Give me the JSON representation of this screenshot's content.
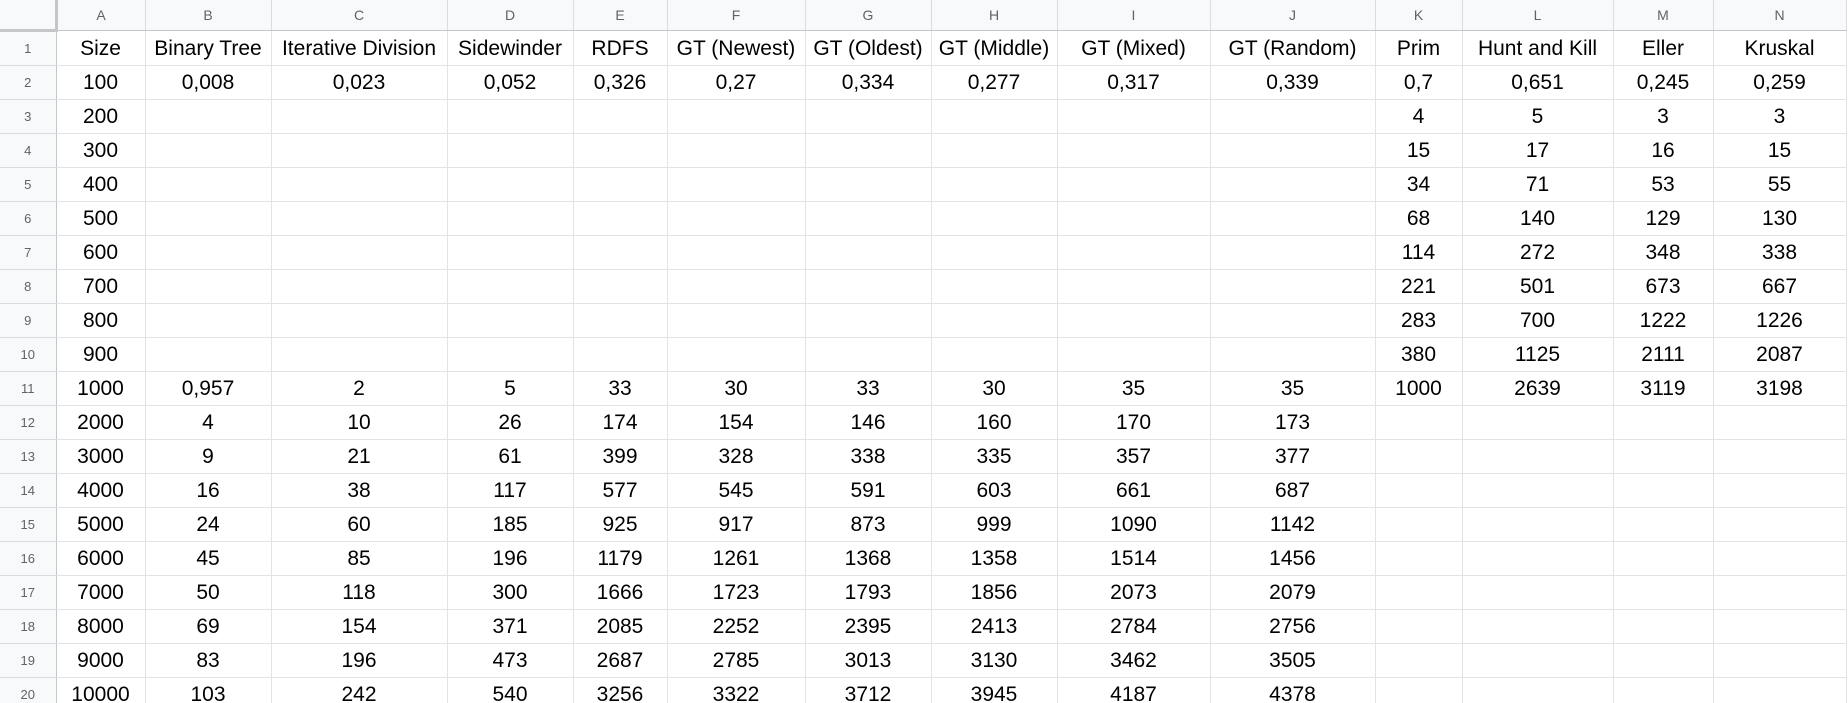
{
  "sheet": {
    "column_letters": [
      "A",
      "B",
      "C",
      "D",
      "E",
      "F",
      "G",
      "H",
      "I",
      "J",
      "K",
      "L",
      "M",
      "N"
    ],
    "row_numbers": [
      "1",
      "2",
      "3",
      "4",
      "5",
      "6",
      "7",
      "8",
      "9",
      "10",
      "11",
      "12",
      "13",
      "14",
      "15",
      "16",
      "17",
      "18",
      "19",
      "20"
    ],
    "next_row_number": "21",
    "rows": [
      [
        "Size",
        "Binary Tree",
        "Iterative Division",
        "Sidewinder",
        "RDFS",
        "GT (Newest)",
        "GT (Oldest)",
        "GT (Middle)",
        "GT (Mixed)",
        "GT (Random)",
        "Prim",
        "Hunt and Kill",
        "Eller",
        "Kruskal"
      ],
      [
        "100",
        "0,008",
        "0,023",
        "0,052",
        "0,326",
        "0,27",
        "0,334",
        "0,277",
        "0,317",
        "0,339",
        "0,7",
        "0,651",
        "0,245",
        "0,259"
      ],
      [
        "200",
        "",
        "",
        "",
        "",
        "",
        "",
        "",
        "",
        "",
        "4",
        "5",
        "3",
        "3"
      ],
      [
        "300",
        "",
        "",
        "",
        "",
        "",
        "",
        "",
        "",
        "",
        "15",
        "17",
        "16",
        "15"
      ],
      [
        "400",
        "",
        "",
        "",
        "",
        "",
        "",
        "",
        "",
        "",
        "34",
        "71",
        "53",
        "55"
      ],
      [
        "500",
        "",
        "",
        "",
        "",
        "",
        "",
        "",
        "",
        "",
        "68",
        "140",
        "129",
        "130"
      ],
      [
        "600",
        "",
        "",
        "",
        "",
        "",
        "",
        "",
        "",
        "",
        "114",
        "272",
        "348",
        "338"
      ],
      [
        "700",
        "",
        "",
        "",
        "",
        "",
        "",
        "",
        "",
        "",
        "221",
        "501",
        "673",
        "667"
      ],
      [
        "800",
        "",
        "",
        "",
        "",
        "",
        "",
        "",
        "",
        "",
        "283",
        "700",
        "1222",
        "1226"
      ],
      [
        "900",
        "",
        "",
        "",
        "",
        "",
        "",
        "",
        "",
        "",
        "380",
        "1125",
        "2111",
        "2087"
      ],
      [
        "1000",
        "0,957",
        "2",
        "5",
        "33",
        "30",
        "33",
        "30",
        "35",
        "35",
        "1000",
        "2639",
        "3119",
        "3198"
      ],
      [
        "2000",
        "4",
        "10",
        "26",
        "174",
        "154",
        "146",
        "160",
        "170",
        "173",
        "",
        "",
        "",
        ""
      ],
      [
        "3000",
        "9",
        "21",
        "61",
        "399",
        "328",
        "338",
        "335",
        "357",
        "377",
        "",
        "",
        "",
        ""
      ],
      [
        "4000",
        "16",
        "38",
        "117",
        "577",
        "545",
        "591",
        "603",
        "661",
        "687",
        "",
        "",
        "",
        ""
      ],
      [
        "5000",
        "24",
        "60",
        "185",
        "925",
        "917",
        "873",
        "999",
        "1090",
        "1142",
        "",
        "",
        "",
        ""
      ],
      [
        "6000",
        "45",
        "85",
        "196",
        "1179",
        "1261",
        "1368",
        "1358",
        "1514",
        "1456",
        "",
        "",
        "",
        ""
      ],
      [
        "7000",
        "50",
        "118",
        "300",
        "1666",
        "1723",
        "1793",
        "1856",
        "2073",
        "2079",
        "",
        "",
        "",
        ""
      ],
      [
        "8000",
        "69",
        "154",
        "371",
        "2085",
        "2252",
        "2395",
        "2413",
        "2784",
        "2756",
        "",
        "",
        "",
        ""
      ],
      [
        "9000",
        "83",
        "196",
        "473",
        "2687",
        "2785",
        "3013",
        "3130",
        "3462",
        "3505",
        "",
        "",
        "",
        ""
      ],
      [
        "10000",
        "103",
        "242",
        "540",
        "3256",
        "3322",
        "3712",
        "3945",
        "4187",
        "4378",
        "",
        "",
        "",
        ""
      ]
    ]
  }
}
